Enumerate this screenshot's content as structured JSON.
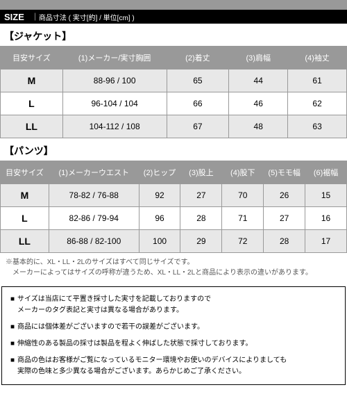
{
  "header": {
    "title": "SIZE",
    "subtitle": "商品寸法 ( 実寸[約] / 単位[cm] )"
  },
  "jacket": {
    "title": "【ジャケット】",
    "columns": [
      "目安サイズ",
      "(1)メーカー/実寸胸囲",
      "(2)着丈",
      "(3)肩幅",
      "(4)袖丈"
    ],
    "widths": [
      "18%",
      "30%",
      "18%",
      "17%",
      "17%"
    ],
    "rows": [
      {
        "c0": "M",
        "c1": "88-96 / 100",
        "c2": "65",
        "c3": "44",
        "c4": "61"
      },
      {
        "c0": "L",
        "c1": "96-104 / 104",
        "c2": "66",
        "c3": "46",
        "c4": "62"
      },
      {
        "c0": "LL",
        "c1": "104-112 / 108",
        "c2": "67",
        "c3": "48",
        "c4": "63"
      }
    ]
  },
  "pants": {
    "title": "【パンツ】",
    "columns": [
      "目安サイズ",
      "(1)メーカーウエスト",
      "(2)ヒップ",
      "(3)股上",
      "(4)股下",
      "(5)モモ幅",
      "(6)裾幅"
    ],
    "widths": [
      "14%",
      "26%",
      "12%",
      "12%",
      "12%",
      "12%",
      "12%"
    ],
    "rows": [
      {
        "c0": "M",
        "c1": "78-82 / 76-88",
        "c2": "92",
        "c3": "27",
        "c4": "70",
        "c5": "26",
        "c6": "15"
      },
      {
        "c0": "L",
        "c1": "82-86 / 79-94",
        "c2": "96",
        "c3": "28",
        "c4": "71",
        "c5": "27",
        "c6": "16"
      },
      {
        "c0": "LL",
        "c1": "86-88 / 82-100",
        "c2": "100",
        "c3": "29",
        "c4": "72",
        "c5": "28",
        "c6": "17"
      }
    ]
  },
  "footnote": "※基本的に、XL・LL・2Lのサイズはすべて同じサイズです。\n　メーカーによってはサイズの呼称が違うため、XL・LL・2Lと商品により表示の違いがあります。",
  "notes": {
    "n0": "サイズは当店にて平置き採寸した実寸を記載しておりますので\nメーカーのタグ表記と実寸は異なる場合があります。",
    "n1": "商品には個体差がございますので若干の誤差がございます。",
    "n2": "伸縮性のある製品の採寸は製品を程よく伸ばした状態で採寸しております。",
    "n3": "商品の色はお客様がご覧になっているモニター環境やお使いのデバイスによりましても\n実際の色味と多少異なる場合がございます。あらかじめご了承ください。"
  },
  "marker": "■"
}
